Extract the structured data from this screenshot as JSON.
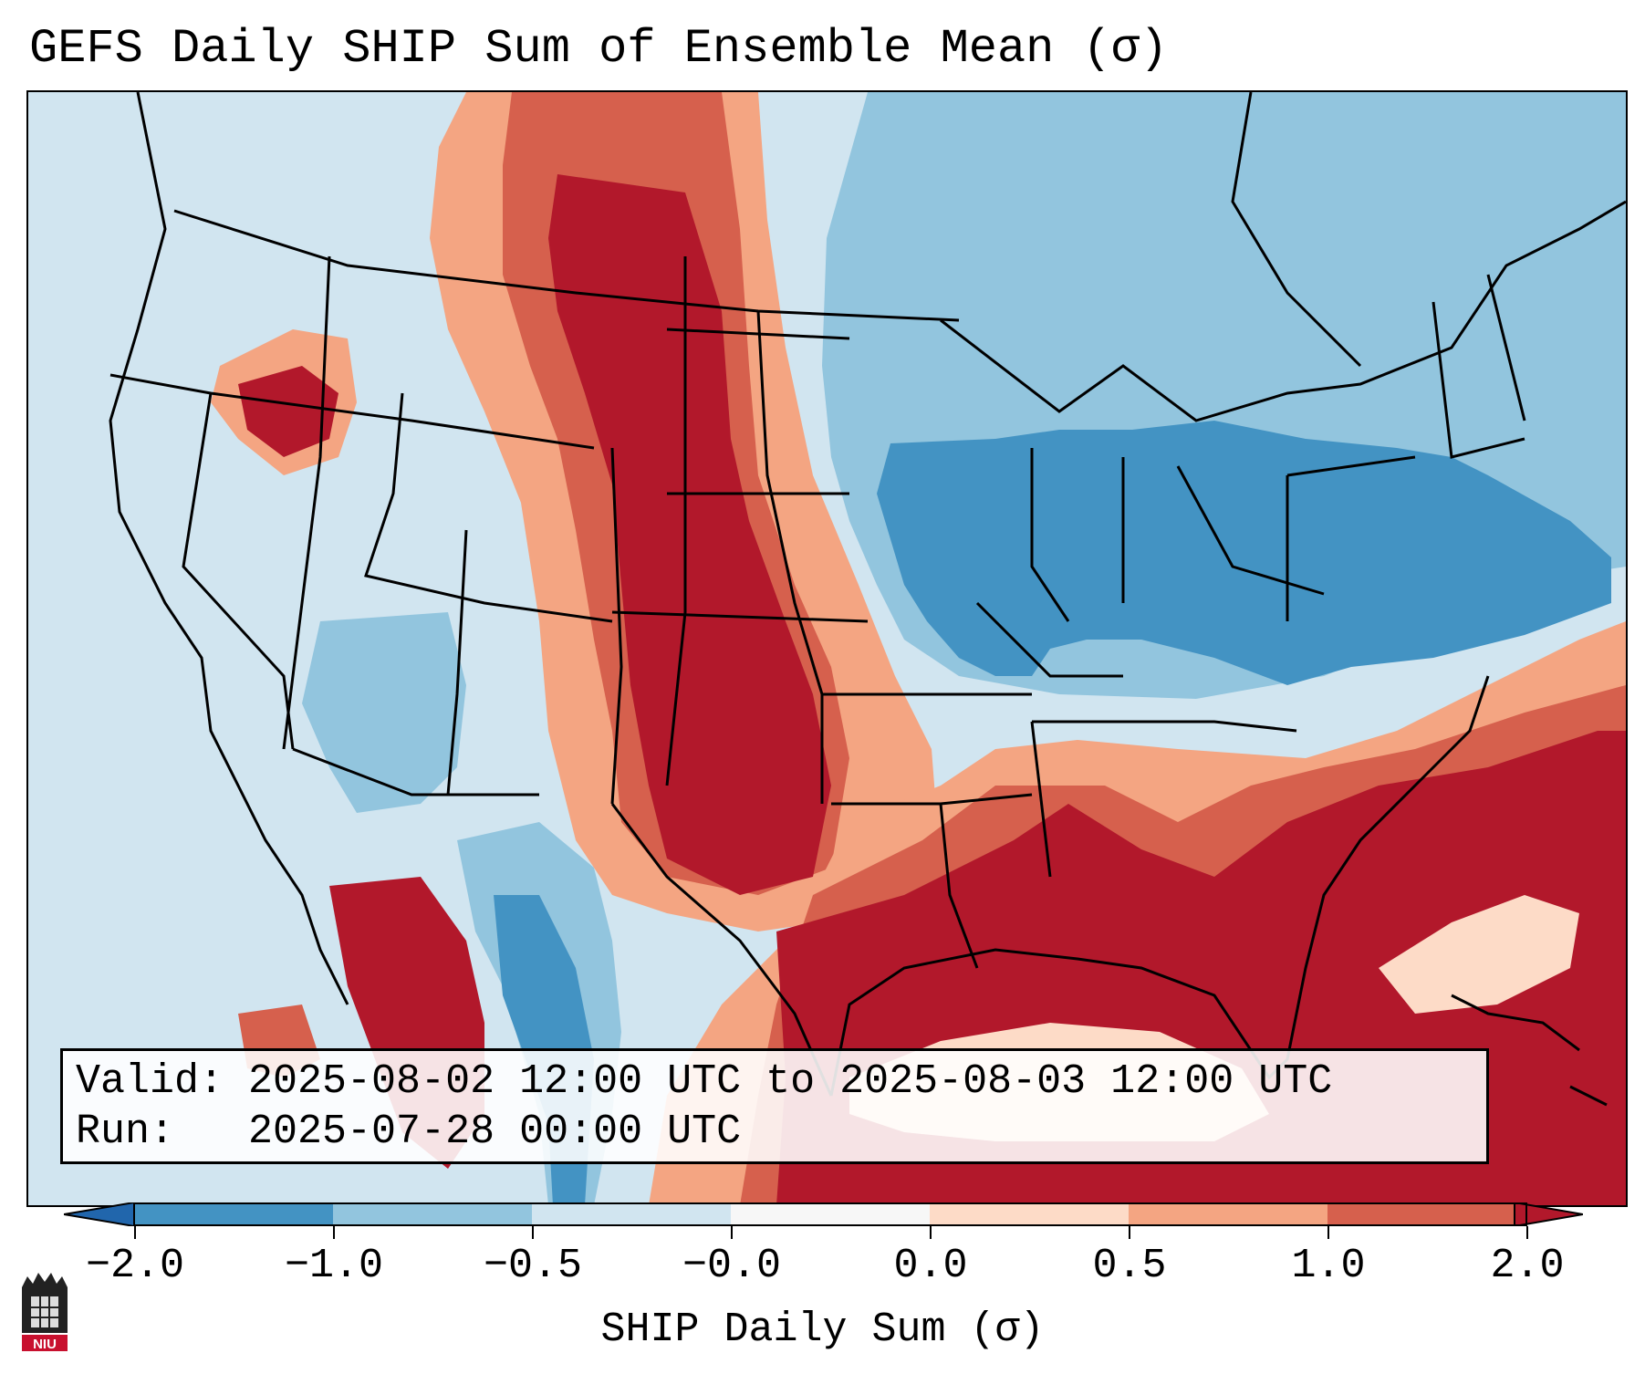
{
  "title": "GEFS Daily SHIP Sum of Ensemble Mean (σ)",
  "info": {
    "valid_line": "Valid: 2025-08-02 12:00 UTC to 2025-08-03 12:00 UTC",
    "run_line": "Run:   2025-07-28 00:00 UTC"
  },
  "colorbar": {
    "label": "SHIP Daily Sum (σ)",
    "ticks": [
      "−2.0",
      "−1.0",
      "−0.5",
      "−0.0",
      "0.0",
      "0.5",
      "1.0",
      "2.0"
    ],
    "bins": [
      {
        "range": "-2.0 to -1.0",
        "color": "#4393c3"
      },
      {
        "range": "-1.0 to -0.5",
        "color": "#92c5de"
      },
      {
        "range": "-0.5 to -0.0",
        "color": "#d1e5f0"
      },
      {
        "range": "-0.0 to 0.0",
        "color": "#f7f7f7"
      },
      {
        "range": "0.0 to 0.5",
        "color": "#fddbc7"
      },
      {
        "range": "0.5 to 1.0",
        "color": "#f4a582"
      },
      {
        "range": "1.0 to 2.0",
        "color": "#d6604d"
      },
      {
        "range": "> 2.0",
        "color": "#b2182b"
      }
    ],
    "extend": "both"
  },
  "map": {
    "region": "Contiguous United States",
    "notable_features": [
      "High SHIP values over the northern and central Plains",
      "High SHIP values over Texas and the Gulf Coast",
      "High SHIP values off the Southeast coast",
      "Below-normal values over the Midwest, Ohio Valley and Northeast"
    ]
  },
  "logo": {
    "text": "NIU"
  }
}
